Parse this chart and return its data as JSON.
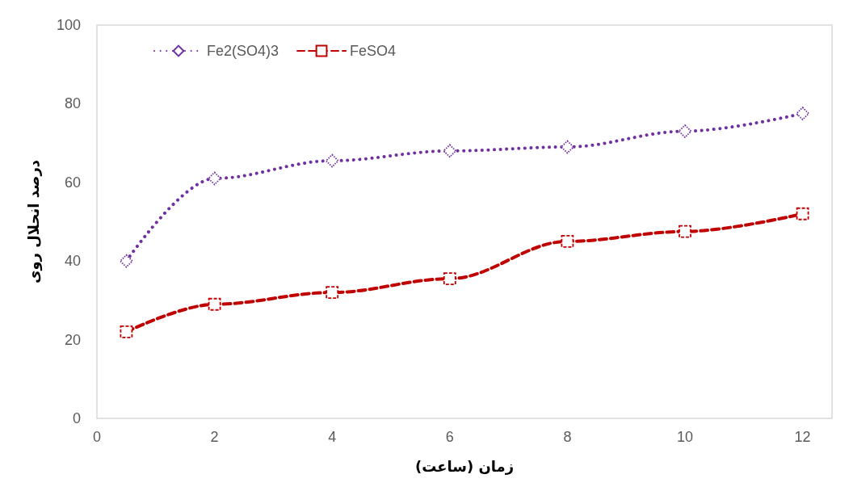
{
  "chart_data": {
    "type": "line",
    "xlabel": "زمان (ساعت)",
    "ylabel": "درصد انحلال روی",
    "x": [
      0.5,
      2,
      4,
      6,
      8,
      10,
      12
    ],
    "series": [
      {
        "name": "Fe2(SO4)3",
        "color": "#7030a0",
        "marker": "diamond",
        "line_style": "dotted",
        "values": [
          40,
          61,
          65.5,
          68,
          69,
          73,
          77.5
        ]
      },
      {
        "name": "FeSO4",
        "color": "#c00000",
        "marker": "square",
        "line_style": "dashed",
        "values": [
          22,
          29,
          32,
          35.5,
          45,
          47.5,
          52
        ]
      }
    ],
    "xlim": [
      0,
      12.5
    ],
    "xticks": [
      0,
      2,
      4,
      6,
      8,
      10,
      12
    ],
    "ylim": [
      0,
      100
    ],
    "yticks": [
      0,
      20,
      40,
      60,
      80,
      100
    ],
    "grid": false,
    "legend": "top left"
  }
}
